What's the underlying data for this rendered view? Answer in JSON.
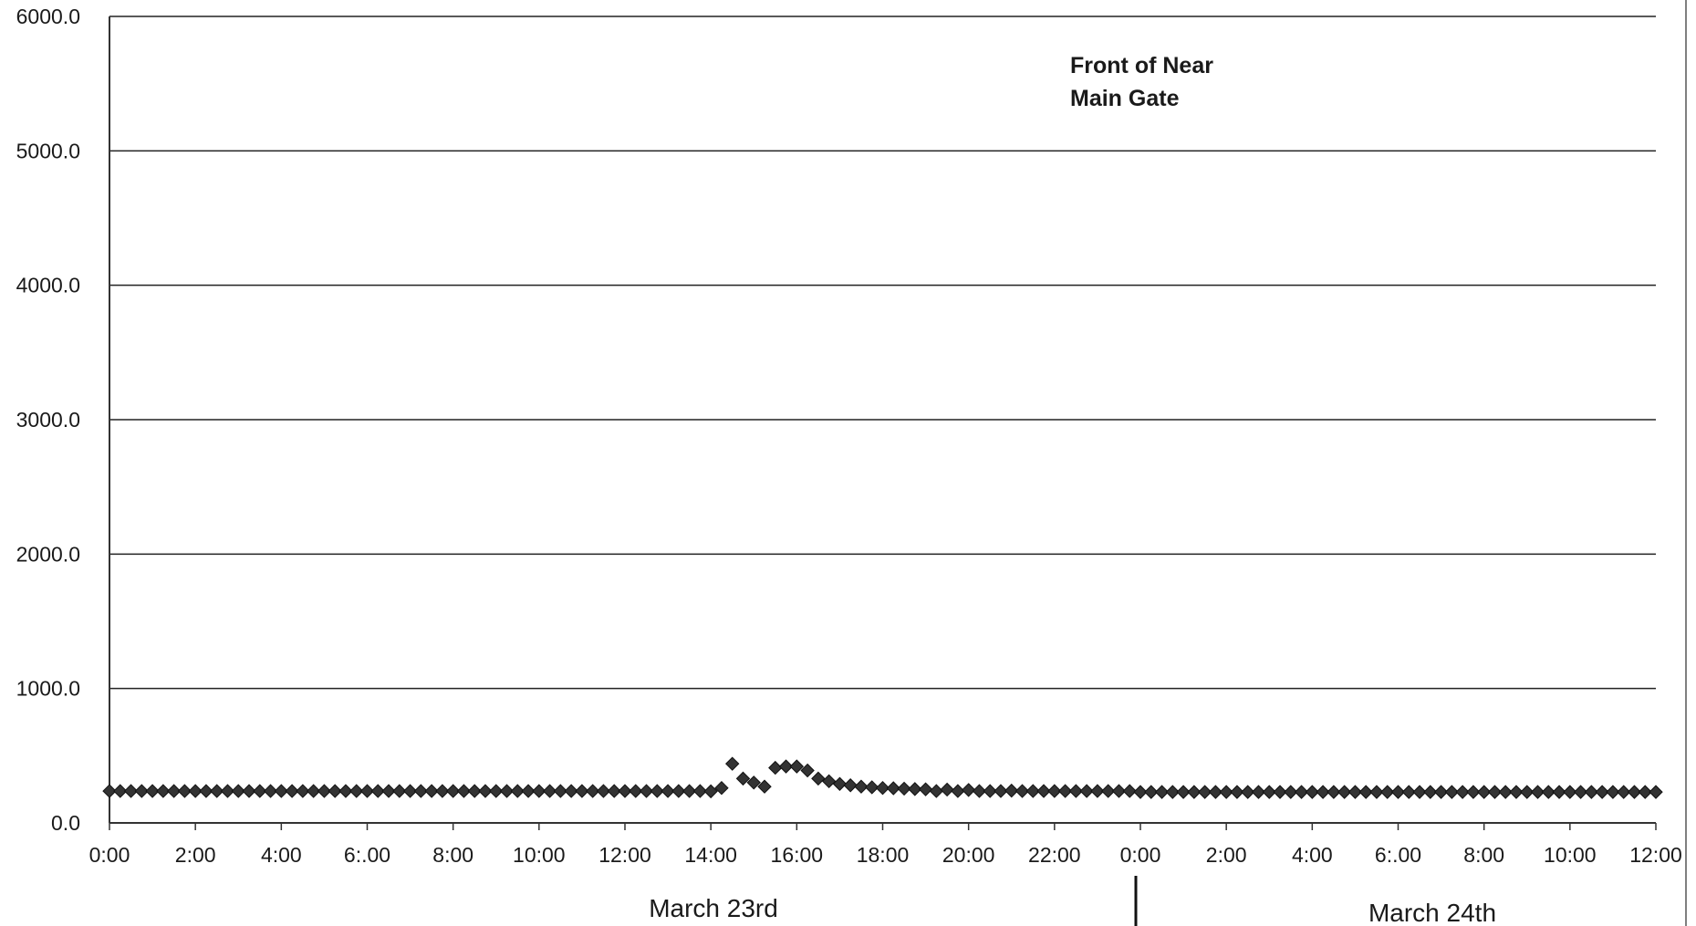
{
  "chart_data": {
    "type": "scatter",
    "annotation": [
      "Front of Near",
      "Main Gate"
    ],
    "ylim": [
      0,
      6000
    ],
    "yticks": [
      "6000.0",
      "5000.0",
      "4000.0",
      "3000.0",
      "2000.0",
      "1000.0",
      "0.0"
    ],
    "xticks": [
      "0:00",
      "2:00",
      "4:00",
      "6:.00",
      "8:00",
      "10:00",
      "12:00",
      "14:00",
      "16:00",
      "18:00",
      "20:00",
      "22:00",
      "0:00",
      "2:00",
      "4:00",
      "6:.00",
      "8:00",
      "10:00",
      "12:00"
    ],
    "date_labels": [
      "March 23rd",
      "March 24th"
    ],
    "grid": true,
    "marker": "diamond",
    "marker_color": "#333333",
    "x_unit": "hours from March 23rd 0:00",
    "x_range": [
      0,
      36
    ],
    "baseline_value": 235,
    "baseline_interval_hours": 0.25,
    "series": [
      {
        "points": [
          [
            14.0,
            235
          ],
          [
            14.25,
            260
          ],
          [
            14.5,
            440
          ],
          [
            14.75,
            330
          ],
          [
            15.0,
            300
          ],
          [
            15.25,
            270
          ],
          [
            15.5,
            410
          ],
          [
            15.75,
            420
          ],
          [
            16.0,
            420
          ],
          [
            16.25,
            390
          ],
          [
            16.5,
            330
          ],
          [
            16.75,
            310
          ],
          [
            17.0,
            290
          ],
          [
            17.25,
            280
          ],
          [
            17.5,
            270
          ],
          [
            17.75,
            265
          ],
          [
            18.0,
            260
          ],
          [
            18.25,
            258
          ],
          [
            18.5,
            255
          ],
          [
            18.75,
            252
          ],
          [
            19.0,
            250
          ],
          [
            19.5,
            248
          ],
          [
            20.0,
            245
          ],
          [
            21.0,
            240
          ]
        ]
      }
    ]
  }
}
